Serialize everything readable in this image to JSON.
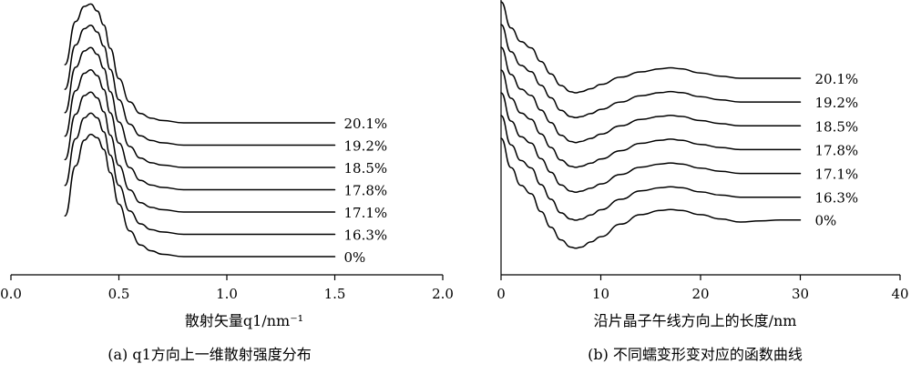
{
  "chart_data": [
    {
      "type": "line",
      "xlabel": "散射矢量q1/nm⁻¹",
      "caption": "(a) q1方向上一维散射强度分布",
      "xlim": [
        0,
        2.0
      ],
      "x_ticks": [
        "0.0",
        "0.5",
        "1.0",
        "1.5",
        "2.0"
      ],
      "series": [
        {
          "name": "0%",
          "x": [
            0.25,
            0.3,
            0.34,
            0.37,
            0.4,
            0.43,
            0.46,
            0.5,
            0.55,
            0.6,
            0.65,
            0.7,
            0.8,
            1.0,
            1.2,
            1.4,
            1.5
          ],
          "y": [
            0.35,
            0.78,
            1.0,
            1.05,
            1.02,
            0.92,
            0.72,
            0.45,
            0.22,
            0.1,
            0.05,
            0.02,
            0.0,
            0.0,
            0.0,
            0.0,
            0.0
          ]
        },
        {
          "name": "16.3%",
          "x": [
            0.25,
            0.3,
            0.34,
            0.37,
            0.4,
            0.43,
            0.46,
            0.5,
            0.55,
            0.6,
            0.65,
            0.7,
            0.8,
            1.0,
            1.2,
            1.4,
            1.5
          ],
          "y": [
            0.42,
            0.82,
            1.0,
            1.04,
            1.0,
            0.88,
            0.68,
            0.42,
            0.2,
            0.09,
            0.04,
            0.02,
            0.0,
            0.0,
            0.0,
            0.0,
            0.0
          ]
        },
        {
          "name": "17.1%",
          "x": [
            0.25,
            0.3,
            0.34,
            0.37,
            0.4,
            0.43,
            0.46,
            0.5,
            0.55,
            0.6,
            0.65,
            0.7,
            0.8,
            1.0,
            1.2,
            1.4,
            1.5
          ],
          "y": [
            0.45,
            0.84,
            1.0,
            1.03,
            0.98,
            0.86,
            0.66,
            0.4,
            0.19,
            0.08,
            0.04,
            0.02,
            0.0,
            0.0,
            0.0,
            0.0,
            0.0
          ]
        },
        {
          "name": "17.8%",
          "x": [
            0.25,
            0.3,
            0.34,
            0.37,
            0.4,
            0.43,
            0.46,
            0.5,
            0.55,
            0.6,
            0.65,
            0.7,
            0.8,
            1.0,
            1.2,
            1.4,
            1.5
          ],
          "y": [
            0.46,
            0.85,
            1.0,
            1.03,
            0.98,
            0.86,
            0.66,
            0.4,
            0.19,
            0.08,
            0.04,
            0.02,
            0.0,
            0.0,
            0.0,
            0.0,
            0.0
          ]
        },
        {
          "name": "18.5%",
          "x": [
            0.25,
            0.3,
            0.34,
            0.37,
            0.4,
            0.43,
            0.46,
            0.5,
            0.55,
            0.6,
            0.65,
            0.7,
            0.8,
            1.0,
            1.2,
            1.4,
            1.5
          ],
          "y": [
            0.47,
            0.86,
            1.0,
            1.03,
            0.97,
            0.85,
            0.65,
            0.39,
            0.18,
            0.08,
            0.04,
            0.02,
            0.0,
            0.0,
            0.0,
            0.0,
            0.0
          ]
        },
        {
          "name": "19.2%",
          "x": [
            0.25,
            0.3,
            0.34,
            0.37,
            0.4,
            0.43,
            0.46,
            0.5,
            0.55,
            0.6,
            0.65,
            0.7,
            0.8,
            1.0,
            1.2,
            1.4,
            1.5
          ],
          "y": [
            0.48,
            0.86,
            1.0,
            1.03,
            0.97,
            0.85,
            0.65,
            0.39,
            0.18,
            0.08,
            0.04,
            0.02,
            0.0,
            0.0,
            0.0,
            0.0,
            0.0
          ]
        },
        {
          "name": "20.1%",
          "x": [
            0.25,
            0.3,
            0.34,
            0.37,
            0.4,
            0.43,
            0.46,
            0.5,
            0.55,
            0.6,
            0.65,
            0.7,
            0.8,
            1.0,
            1.2,
            1.4,
            1.5
          ],
          "y": [
            0.5,
            0.87,
            1.0,
            1.02,
            0.96,
            0.84,
            0.64,
            0.38,
            0.18,
            0.08,
            0.04,
            0.02,
            0.0,
            0.0,
            0.0,
            0.0,
            0.0
          ]
        }
      ]
    },
    {
      "type": "line",
      "xlabel": "沿片晶子午线方向上的长度/nm",
      "caption": "(b) 不同蠕变形变对应的函数曲线",
      "xlim": [
        0,
        40
      ],
      "x_ticks": [
        "0",
        "10",
        "20",
        "30",
        "40"
      ],
      "series": [
        {
          "name": "0%",
          "x": [
            0,
            1,
            2,
            3,
            4,
            5,
            6,
            7,
            7.5,
            8,
            9,
            10,
            12,
            14,
            16,
            17,
            18,
            20,
            22,
            24,
            26,
            28,
            30
          ],
          "y": [
            1.0,
            0.72,
            0.55,
            0.47,
            0.3,
            0.15,
            0.03,
            -0.04,
            -0.05,
            -0.04,
            0.01,
            0.06,
            0.18,
            0.27,
            0.31,
            0.32,
            0.31,
            0.27,
            0.23,
            0.2,
            0.21,
            0.22,
            0.22
          ]
        },
        {
          "name": "16.3%",
          "x": [
            0,
            1,
            2,
            3,
            4,
            5,
            6,
            7,
            7.5,
            8,
            9,
            10,
            12,
            14,
            16,
            17,
            18,
            20,
            22,
            24,
            26,
            28,
            30
          ],
          "y": [
            1.0,
            0.72,
            0.57,
            0.5,
            0.34,
            0.2,
            0.07,
            0.01,
            0.0,
            0.01,
            0.05,
            0.1,
            0.2,
            0.28,
            0.31,
            0.32,
            0.31,
            0.27,
            0.24,
            0.22,
            0.22,
            0.22,
            0.22
          ]
        },
        {
          "name": "17.1%",
          "x": [
            0,
            1,
            2,
            3,
            4,
            5,
            6,
            7,
            7.5,
            8,
            9,
            10,
            12,
            14,
            16,
            17,
            18,
            20,
            22,
            24,
            26,
            28,
            30
          ],
          "y": [
            1.0,
            0.73,
            0.58,
            0.52,
            0.37,
            0.24,
            0.12,
            0.06,
            0.05,
            0.06,
            0.09,
            0.13,
            0.22,
            0.29,
            0.32,
            0.33,
            0.32,
            0.28,
            0.25,
            0.23,
            0.23,
            0.23,
            0.23
          ]
        },
        {
          "name": "17.8%",
          "x": [
            0,
            1,
            2,
            3,
            4,
            5,
            6,
            7,
            7.5,
            8,
            9,
            10,
            12,
            14,
            16,
            17,
            18,
            20,
            22,
            24,
            26,
            28,
            30
          ],
          "y": [
            1.0,
            0.73,
            0.59,
            0.53,
            0.39,
            0.26,
            0.14,
            0.08,
            0.07,
            0.08,
            0.11,
            0.15,
            0.23,
            0.3,
            0.33,
            0.34,
            0.33,
            0.29,
            0.26,
            0.24,
            0.24,
            0.24,
            0.24
          ]
        },
        {
          "name": "18.5%",
          "x": [
            0,
            1,
            2,
            3,
            4,
            5,
            6,
            7,
            7.5,
            8,
            9,
            10,
            12,
            14,
            16,
            17,
            18,
            20,
            22,
            24,
            26,
            28,
            30
          ],
          "y": [
            1.0,
            0.74,
            0.6,
            0.54,
            0.4,
            0.28,
            0.16,
            0.1,
            0.09,
            0.1,
            0.13,
            0.17,
            0.25,
            0.31,
            0.34,
            0.35,
            0.34,
            0.3,
            0.27,
            0.25,
            0.25,
            0.25,
            0.25
          ]
        },
        {
          "name": "19.2%",
          "x": [
            0,
            1,
            2,
            3,
            4,
            5,
            6,
            7,
            7.5,
            8,
            9,
            10,
            12,
            14,
            16,
            17,
            18,
            20,
            22,
            24,
            26,
            28,
            30
          ],
          "y": [
            1.0,
            0.74,
            0.61,
            0.55,
            0.42,
            0.3,
            0.18,
            0.12,
            0.11,
            0.12,
            0.15,
            0.19,
            0.26,
            0.32,
            0.35,
            0.36,
            0.35,
            0.31,
            0.28,
            0.26,
            0.26,
            0.26,
            0.26
          ]
        },
        {
          "name": "20.1%",
          "x": [
            0,
            1,
            2,
            3,
            4,
            5,
            6,
            7,
            7.5,
            8,
            9,
            10,
            12,
            14,
            16,
            17,
            18,
            20,
            22,
            24,
            26,
            28,
            30
          ],
          "y": [
            1.0,
            0.75,
            0.62,
            0.56,
            0.43,
            0.31,
            0.2,
            0.14,
            0.13,
            0.14,
            0.17,
            0.21,
            0.28,
            0.33,
            0.36,
            0.37,
            0.36,
            0.32,
            0.29,
            0.27,
            0.27,
            0.27,
            0.27
          ]
        }
      ]
    }
  ]
}
